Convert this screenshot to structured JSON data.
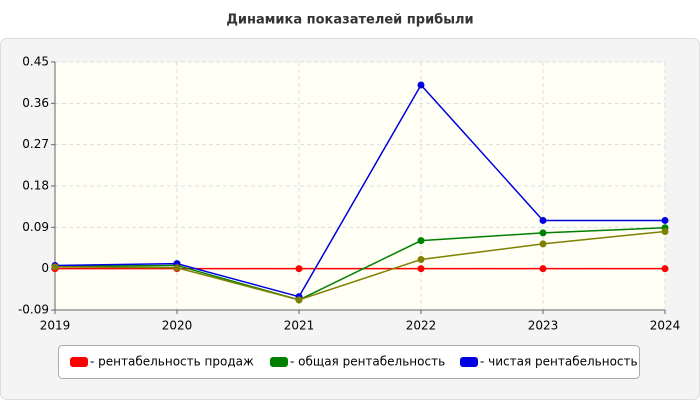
{
  "chart_data": {
    "type": "line",
    "title": "Динамика показателей прибыли",
    "x": [
      2019,
      2020,
      2021,
      2022,
      2023,
      2024
    ],
    "xlim": [
      2019,
      2024
    ],
    "xticks": [
      2019,
      2020,
      2021,
      2022,
      2023,
      2024
    ],
    "ylim": [
      -0.09,
      0.45
    ],
    "yticks": [
      -0.09,
      0,
      0.09,
      0.18,
      0.27,
      0.36,
      0.45
    ],
    "grid": true,
    "legend": "bottom",
    "series": [
      {
        "name": "- рентабельность продаж",
        "color": "#ff0000",
        "values": [
          0,
          0,
          0,
          0,
          0,
          0
        ]
      },
      {
        "name": "- общая рентабельность",
        "color": "#008000",
        "values": [
          0.005,
          0.007,
          -0.068,
          0.061,
          0.078,
          0.089
        ]
      },
      {
        "name": "- чистая рентабельность",
        "color": "#0000e0",
        "values": [
          0.007,
          0.011,
          -0.061,
          0.4,
          0.105,
          0.105
        ]
      },
      {
        "color": "#808000",
        "values": [
          0.004,
          0.002,
          -0.068,
          0.02,
          0.054,
          0.081
        ]
      }
    ]
  }
}
